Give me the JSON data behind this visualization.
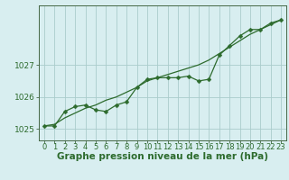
{
  "x": [
    0,
    1,
    2,
    3,
    4,
    5,
    6,
    7,
    8,
    9,
    10,
    11,
    12,
    13,
    14,
    15,
    16,
    17,
    18,
    19,
    20,
    21,
    22,
    23
  ],
  "y_line": [
    1025.1,
    1025.1,
    1025.55,
    1025.7,
    1025.75,
    1025.6,
    1025.55,
    1025.75,
    1025.85,
    1026.3,
    1026.55,
    1026.6,
    1026.6,
    1026.6,
    1026.65,
    1026.5,
    1026.55,
    1027.3,
    1027.6,
    1027.9,
    1028.1,
    1028.1,
    1028.3,
    1028.4
  ],
  "y_smooth": [
    1025.1,
    1025.15,
    1025.35,
    1025.5,
    1025.65,
    1025.75,
    1025.9,
    1026.0,
    1026.15,
    1026.3,
    1026.5,
    1026.6,
    1026.7,
    1026.8,
    1026.9,
    1027.0,
    1027.15,
    1027.35,
    1027.55,
    1027.75,
    1027.95,
    1028.1,
    1028.25,
    1028.4
  ],
  "background_color": "#d8eef0",
  "grid_color": "#aacccc",
  "line_color": "#2d6b2d",
  "marker_size": 2.5,
  "xlabel": "Graphe pression niveau de la mer (hPa)",
  "yticks": [
    1025,
    1026,
    1027
  ],
  "ylim": [
    1024.65,
    1028.85
  ],
  "xlim": [
    -0.5,
    23.5
  ],
  "label_fontsize": 7.5,
  "tick_fontsize": 6.5
}
